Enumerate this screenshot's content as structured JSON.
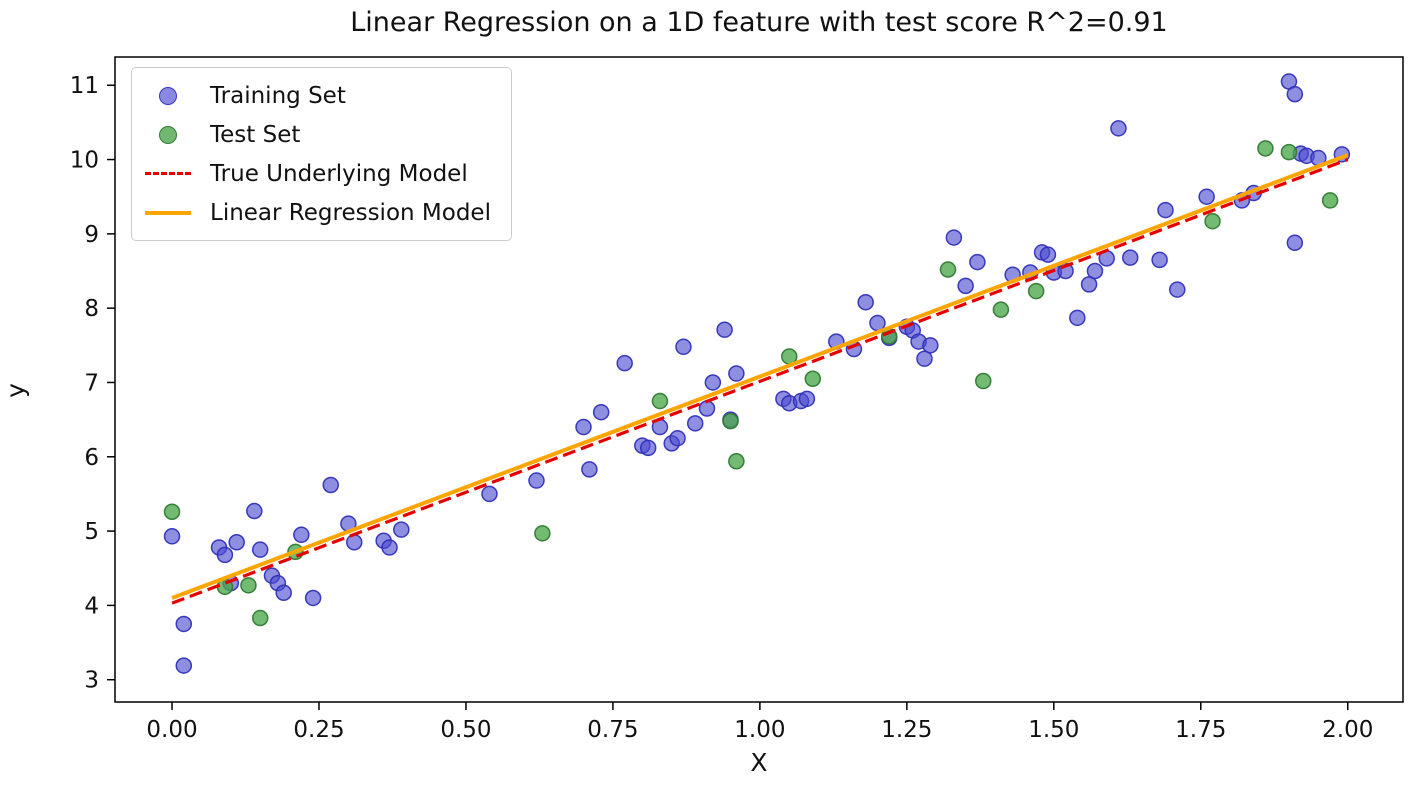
{
  "chart_data": {
    "type": "scatter",
    "title": "Linear Regression on a 1D feature with test score R^2=0.91",
    "xlabel": "X",
    "ylabel": "y",
    "xlim": [
      -0.097,
      2.094
    ],
    "ylim": [
      2.7,
      11.38
    ],
    "grid": false,
    "x_ticks": [
      0.0,
      0.25,
      0.5,
      0.75,
      1.0,
      1.25,
      1.5,
      1.75,
      2.0
    ],
    "x_tick_labels": [
      "0.00",
      "0.25",
      "0.50",
      "0.75",
      "1.00",
      "1.25",
      "1.50",
      "1.75",
      "2.00"
    ],
    "y_ticks": [
      3,
      4,
      5,
      6,
      7,
      8,
      9,
      10,
      11
    ],
    "y_tick_labels": [
      "3",
      "4",
      "5",
      "6",
      "7",
      "8",
      "9",
      "10",
      "11"
    ],
    "legend": {
      "position": "upper left"
    },
    "series": [
      {
        "name": "Training Set",
        "type": "scatter",
        "color": "#4a4ad1",
        "edge": "#3030b8",
        "alpha": 0.62,
        "points": [
          [
            0.0,
            4.93
          ],
          [
            0.02,
            3.75
          ],
          [
            0.02,
            3.19
          ],
          [
            0.08,
            4.78
          ],
          [
            0.09,
            4.68
          ],
          [
            0.1,
            4.3
          ],
          [
            0.11,
            4.85
          ],
          [
            0.14,
            5.27
          ],
          [
            0.15,
            4.75
          ],
          [
            0.17,
            4.4
          ],
          [
            0.18,
            4.3
          ],
          [
            0.19,
            4.17
          ],
          [
            0.22,
            4.95
          ],
          [
            0.24,
            4.1
          ],
          [
            0.27,
            5.62
          ],
          [
            0.3,
            5.1
          ],
          [
            0.31,
            4.85
          ],
          [
            0.36,
            4.87
          ],
          [
            0.37,
            4.78
          ],
          [
            0.39,
            5.02
          ],
          [
            0.54,
            5.5
          ],
          [
            0.62,
            5.68
          ],
          [
            0.7,
            6.4
          ],
          [
            0.71,
            5.83
          ],
          [
            0.73,
            6.6
          ],
          [
            0.77,
            7.26
          ],
          [
            0.8,
            6.15
          ],
          [
            0.81,
            6.12
          ],
          [
            0.83,
            6.4
          ],
          [
            0.85,
            6.18
          ],
          [
            0.86,
            6.25
          ],
          [
            0.87,
            7.48
          ],
          [
            0.89,
            6.45
          ],
          [
            0.91,
            6.65
          ],
          [
            0.92,
            7.0
          ],
          [
            0.94,
            7.71
          ],
          [
            0.95,
            6.5
          ],
          [
            0.96,
            7.12
          ],
          [
            1.04,
            6.78
          ],
          [
            1.05,
            6.72
          ],
          [
            1.07,
            6.75
          ],
          [
            1.08,
            6.78
          ],
          [
            1.13,
            7.55
          ],
          [
            1.16,
            7.45
          ],
          [
            1.18,
            8.08
          ],
          [
            1.2,
            7.8
          ],
          [
            1.22,
            7.6
          ],
          [
            1.25,
            7.75
          ],
          [
            1.26,
            7.7
          ],
          [
            1.27,
            7.55
          ],
          [
            1.28,
            7.32
          ],
          [
            1.29,
            7.5
          ],
          [
            1.33,
            8.95
          ],
          [
            1.35,
            8.3
          ],
          [
            1.37,
            8.62
          ],
          [
            1.43,
            8.45
          ],
          [
            1.46,
            8.48
          ],
          [
            1.48,
            8.75
          ],
          [
            1.49,
            8.72
          ],
          [
            1.5,
            8.48
          ],
          [
            1.52,
            8.5
          ],
          [
            1.54,
            7.87
          ],
          [
            1.56,
            8.32
          ],
          [
            1.57,
            8.5
          ],
          [
            1.59,
            8.67
          ],
          [
            1.61,
            10.42
          ],
          [
            1.63,
            8.68
          ],
          [
            1.68,
            8.65
          ],
          [
            1.69,
            9.32
          ],
          [
            1.71,
            8.25
          ],
          [
            1.76,
            9.5
          ],
          [
            1.82,
            9.45
          ],
          [
            1.84,
            9.55
          ],
          [
            1.9,
            11.05
          ],
          [
            1.91,
            10.88
          ],
          [
            1.91,
            8.88
          ],
          [
            1.92,
            10.08
          ],
          [
            1.93,
            10.05
          ],
          [
            1.95,
            10.02
          ],
          [
            1.99,
            10.07
          ]
        ]
      },
      {
        "name": "Test Set",
        "type": "scatter",
        "color": "#4ca64c",
        "edge": "#2f7a33",
        "alpha": 0.78,
        "points": [
          [
            0.0,
            5.26
          ],
          [
            0.09,
            4.25
          ],
          [
            0.13,
            4.27
          ],
          [
            0.15,
            3.83
          ],
          [
            0.21,
            4.72
          ],
          [
            0.63,
            4.97
          ],
          [
            0.83,
            6.75
          ],
          [
            0.95,
            6.48
          ],
          [
            0.96,
            5.94
          ],
          [
            1.05,
            7.35
          ],
          [
            1.09,
            7.05
          ],
          [
            1.22,
            7.62
          ],
          [
            1.32,
            8.52
          ],
          [
            1.38,
            7.02
          ],
          [
            1.41,
            7.98
          ],
          [
            1.47,
            8.23
          ],
          [
            1.77,
            9.17
          ],
          [
            1.86,
            10.15
          ],
          [
            1.9,
            10.1
          ],
          [
            1.97,
            9.45
          ]
        ]
      },
      {
        "name": "True Underlying Model",
        "type": "line",
        "style": "dashed",
        "dash": "13 6",
        "color": "#e50000",
        "width": 3.2,
        "points": [
          [
            0.0,
            4.03
          ],
          [
            2.0,
            10.0
          ]
        ]
      },
      {
        "name": "Linear Regression Model",
        "type": "line",
        "style": "solid",
        "color": "#ffa500",
        "width": 4,
        "points": [
          [
            0.0,
            4.1
          ],
          [
            2.0,
            10.06
          ]
        ]
      }
    ]
  }
}
